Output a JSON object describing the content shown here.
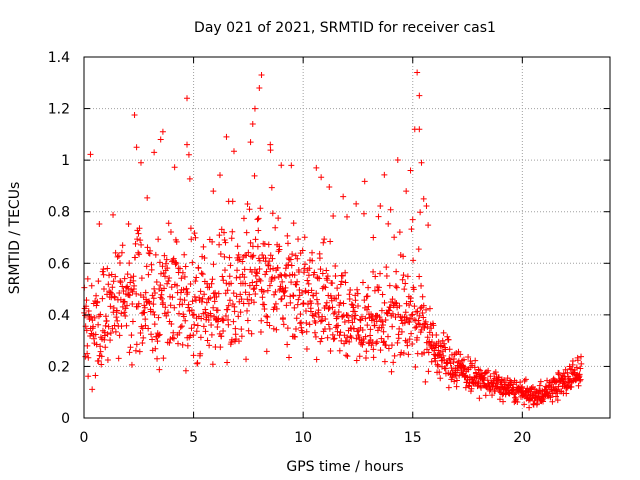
{
  "chart_data": {
    "type": "scatter",
    "title": "Day 021 of 2021, SRMTID for receiver cas1",
    "xlabel": "GPS time / hours",
    "ylabel": "SRMTID / TECUs",
    "xlim": [
      0,
      24
    ],
    "ylim": [
      0,
      1.4
    ],
    "x_ticks": [
      0,
      5,
      10,
      15,
      20
    ],
    "x_tick_labels": [
      "0",
      "5",
      "10",
      "15",
      "20"
    ],
    "y_ticks": [
      0,
      0.2,
      0.4,
      0.6,
      0.8,
      1.0,
      1.2,
      1.4
    ],
    "y_tick_labels": [
      "0",
      "0.2",
      "0.4",
      "0.6",
      "0.8",
      "1",
      "1.2",
      "1.4"
    ],
    "grid": true,
    "marker": "+",
    "series": [
      {
        "name": "cas1",
        "color": "#ff0000",
        "profile": [
          {
            "x": 0.0,
            "y": 0.38,
            "spread": 0.13
          },
          {
            "x": 1.0,
            "y": 0.4,
            "spread": 0.15
          },
          {
            "x": 2.0,
            "y": 0.48,
            "spread": 0.18
          },
          {
            "x": 3.0,
            "y": 0.48,
            "spread": 0.18
          },
          {
            "x": 4.0,
            "y": 0.45,
            "spread": 0.17
          },
          {
            "x": 5.0,
            "y": 0.45,
            "spread": 0.17
          },
          {
            "x": 6.0,
            "y": 0.45,
            "spread": 0.17
          },
          {
            "x": 7.0,
            "y": 0.47,
            "spread": 0.17
          },
          {
            "x": 8.0,
            "y": 0.55,
            "spread": 0.2
          },
          {
            "x": 9.0,
            "y": 0.5,
            "spread": 0.17
          },
          {
            "x": 10.0,
            "y": 0.5,
            "spread": 0.16
          },
          {
            "x": 11.0,
            "y": 0.46,
            "spread": 0.15
          },
          {
            "x": 12.0,
            "y": 0.38,
            "spread": 0.12
          },
          {
            "x": 13.0,
            "y": 0.36,
            "spread": 0.12
          },
          {
            "x": 14.0,
            "y": 0.42,
            "spread": 0.14
          },
          {
            "x": 15.0,
            "y": 0.4,
            "spread": 0.14
          },
          {
            "x": 15.5,
            "y": 0.38,
            "spread": 0.14
          },
          {
            "x": 16.0,
            "y": 0.26,
            "spread": 0.07
          },
          {
            "x": 17.0,
            "y": 0.2,
            "spread": 0.06
          },
          {
            "x": 18.0,
            "y": 0.15,
            "spread": 0.04
          },
          {
            "x": 19.0,
            "y": 0.12,
            "spread": 0.035
          },
          {
            "x": 20.0,
            "y": 0.1,
            "spread": 0.03
          },
          {
            "x": 20.5,
            "y": 0.08,
            "spread": 0.03
          },
          {
            "x": 21.0,
            "y": 0.1,
            "spread": 0.03
          },
          {
            "x": 22.0,
            "y": 0.14,
            "spread": 0.04
          },
          {
            "x": 22.7,
            "y": 0.2,
            "spread": 0.05
          }
        ],
        "x_range": [
          0.0,
          22.7
        ],
        "point_count": 1500,
        "outliers": [
          {
            "x": 4.7,
            "y": 1.24
          },
          {
            "x": 8.1,
            "y": 1.33
          },
          {
            "x": 8.0,
            "y": 1.28
          },
          {
            "x": 15.2,
            "y": 1.34
          },
          {
            "x": 15.3,
            "y": 1.25
          },
          {
            "x": 15.3,
            "y": 1.12
          },
          {
            "x": 15.4,
            "y": 0.99
          },
          {
            "x": 7.8,
            "y": 1.2
          },
          {
            "x": 7.7,
            "y": 1.14
          },
          {
            "x": 3.6,
            "y": 1.11
          },
          {
            "x": 3.5,
            "y": 1.08
          },
          {
            "x": 3.2,
            "y": 1.03
          },
          {
            "x": 2.4,
            "y": 1.05
          },
          {
            "x": 4.7,
            "y": 1.06
          },
          {
            "x": 6.5,
            "y": 1.09
          },
          {
            "x": 10.6,
            "y": 0.97
          },
          {
            "x": 14.9,
            "y": 0.96
          },
          {
            "x": 7.6,
            "y": 1.07
          },
          {
            "x": 8.5,
            "y": 1.06
          },
          {
            "x": 9.0,
            "y": 0.98
          },
          {
            "x": 2.6,
            "y": 0.99
          },
          {
            "x": 15.5,
            "y": 0.85
          },
          {
            "x": 14.7,
            "y": 0.88
          },
          {
            "x": 13.2,
            "y": 0.7
          },
          {
            "x": 12.0,
            "y": 0.78
          },
          {
            "x": 5.9,
            "y": 0.88
          },
          {
            "x": 6.6,
            "y": 0.84
          }
        ]
      }
    ]
  }
}
